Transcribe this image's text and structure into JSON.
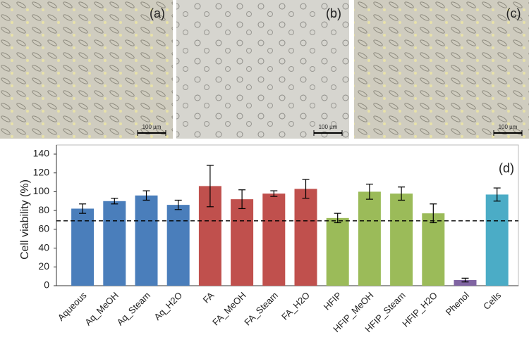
{
  "panels": [
    {
      "label": "(a)",
      "scale_bar": "100 µm"
    },
    {
      "label": "(b)",
      "scale_bar": "100 µm"
    },
    {
      "label": "(c)",
      "scale_bar": "100 µm"
    }
  ],
  "chart_data": {
    "type": "bar",
    "panel_label": "(d)",
    "y_label": "Cell viability (%)",
    "categories": [
      "Aqueous",
      "Aq_MeOH",
      "Aq_Steam",
      "Aq_H2O",
      "FA",
      "FA_MeOH",
      "FA_Steam",
      "FA_H2O",
      "HFIP",
      "HFIP_MeOH",
      "HFIP_Steam",
      "HFIP_H2O",
      "Phenol",
      "Cells"
    ],
    "values": [
      82,
      90,
      96,
      86,
      106,
      92,
      98,
      103,
      72,
      100,
      98,
      77,
      6,
      97
    ],
    "errors": [
      5,
      3,
      5,
      5,
      22,
      10,
      3,
      10,
      5,
      8,
      7,
      10,
      2,
      7
    ],
    "colors": [
      "#4a7ebb",
      "#4a7ebb",
      "#4a7ebb",
      "#4a7ebb",
      "#c0504d",
      "#c0504d",
      "#c0504d",
      "#c0504d",
      "#9bbb59",
      "#9bbb59",
      "#9bbb59",
      "#9bbb59",
      "#8064a2",
      "#4bacc6"
    ],
    "reference_line": 69,
    "ylim": [
      0,
      140
    ],
    "yticks": [
      0,
      20,
      40,
      60,
      80,
      100,
      120,
      140
    ]
  }
}
